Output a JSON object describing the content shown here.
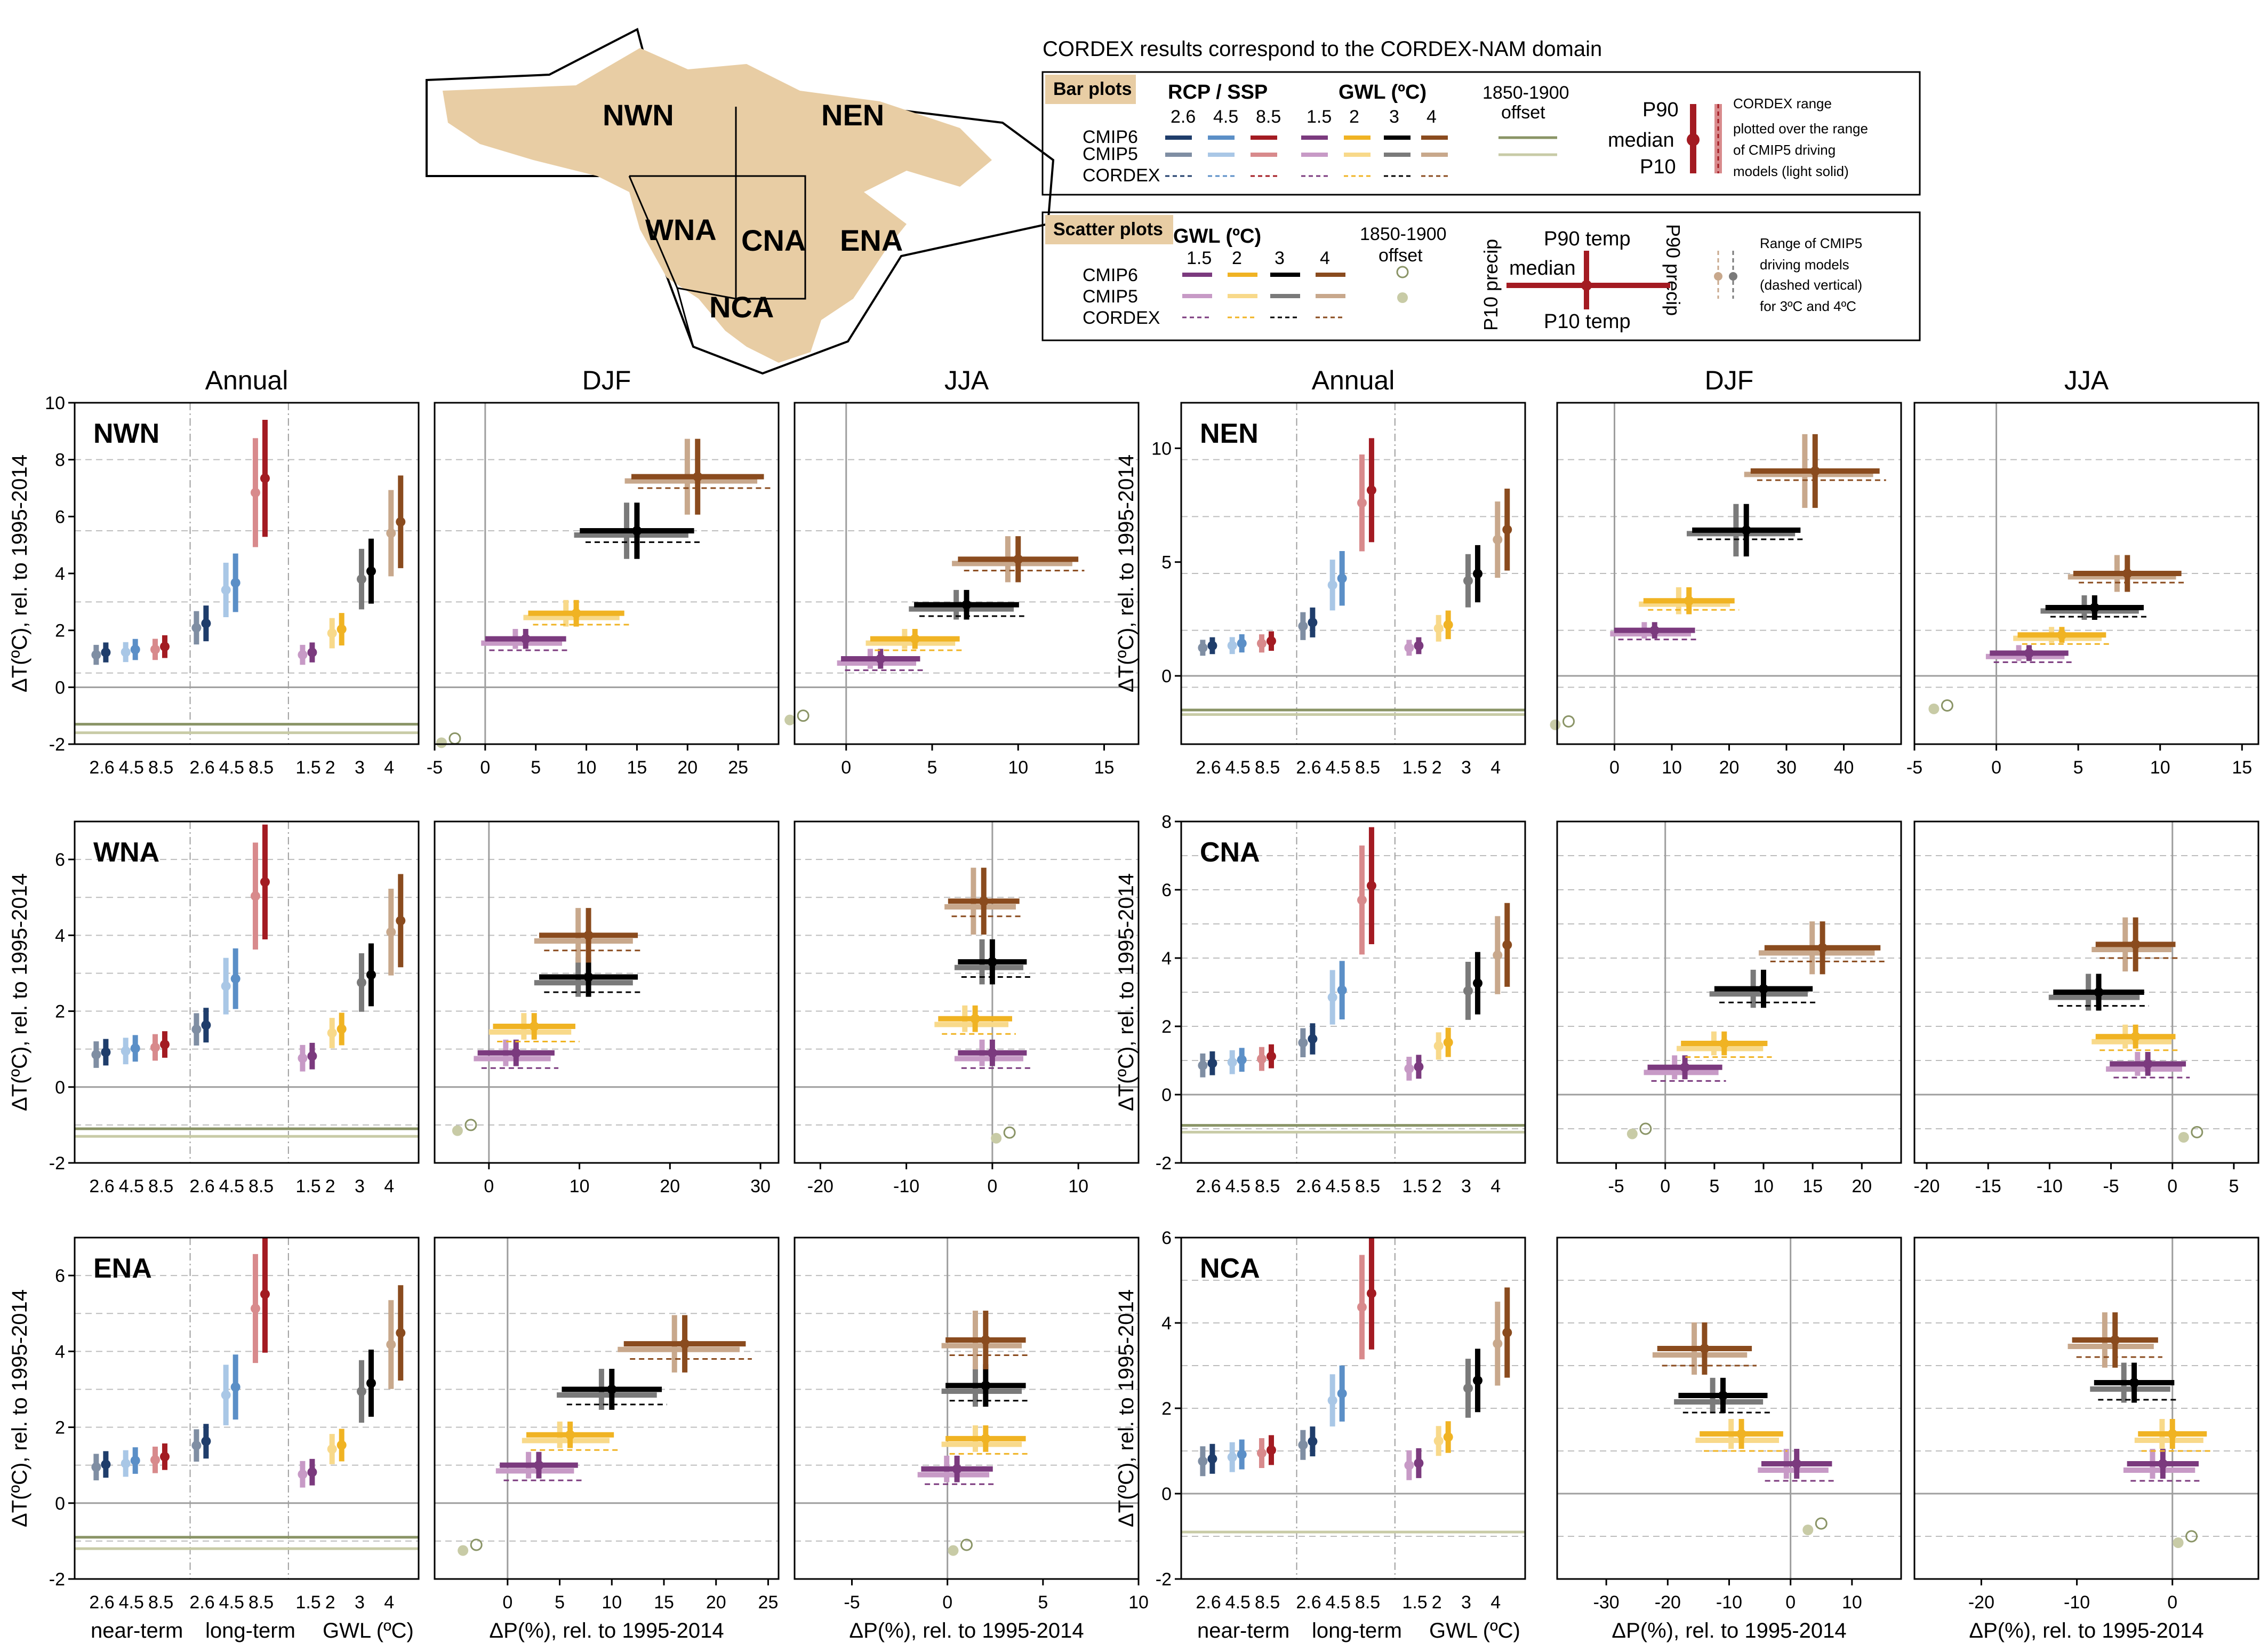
{
  "header": {
    "note": "CORDEX results correspond to the CORDEX-NAM domain",
    "map_regions": [
      "NWN",
      "NEN",
      "WNA",
      "CNA",
      "ENA",
      "NCA"
    ]
  },
  "legend_bar": {
    "title": "Bar plots",
    "rcp_title": "RCP / SSP",
    "rcp_levels": [
      "2.6",
      "4.5",
      "8.5"
    ],
    "gwl_title": "GWL (ºC)",
    "gwl_levels": [
      "1.5",
      "2",
      "3",
      "4"
    ],
    "offset_title": [
      "1850-1900",
      "offset"
    ],
    "rows": [
      "CMIP6",
      "CMIP5",
      "CORDEX"
    ],
    "stat_labels": [
      "P90",
      "median",
      "P10"
    ],
    "cordex_note": [
      "CORDEX range",
      "plotted over the range",
      "of CMIP5 driving",
      "models (light solid)"
    ]
  },
  "legend_scatter": {
    "title": "Scatter plots",
    "gwl_title": "GWL (ºC)",
    "gwl_levels": [
      "1.5",
      "2",
      "3",
      "4"
    ],
    "offset_title": [
      "1850-1900",
      "offset"
    ],
    "rows": [
      "CMIP6",
      "CMIP5",
      "CORDEX"
    ],
    "p90_temp": "P90 temp",
    "p10_temp": "P10 temp",
    "median": "median",
    "p10_precip": "P10 precip",
    "p90_precip": "P90 precip",
    "range_note": [
      "Range of CMIP5",
      "driving models",
      "(dashed vertical)",
      "for 3ºC and 4ºC"
    ]
  },
  "colors": {
    "cmip6_rcp": [
      "#1f3d6b",
      "#5b8fc7",
      "#a31b22"
    ],
    "cmip5_rcp": [
      "#7f8ea3",
      "#a9c7e6",
      "#d88a8c"
    ],
    "cmip6_gwl": [
      "#7b3a7e",
      "#f0b323",
      "#000000",
      "#8a4b1e"
    ],
    "cmip5_gwl": [
      "#c79ac6",
      "#f8d98a",
      "#7a7a7a",
      "#c8a88c"
    ],
    "offset": [
      "#8a9466",
      "#c8cba6"
    ],
    "map_land": "#e8cda4"
  },
  "common": {
    "column_titles": [
      "Annual",
      "DJF",
      "JJA"
    ],
    "bar_ticks": [
      "2.6",
      "4.5",
      "8.5",
      "2.6",
      "4.5",
      "8.5",
      "1.5",
      "2",
      "3",
      "4"
    ],
    "ylabel": "ΔT(ºC), rel. to 1995-2014",
    "bar_xlabel": [
      "near-term",
      "long-term",
      "GWL (ºC)"
    ],
    "scatter_xlabel": "ΔP(%), rel. to 1995-2014"
  },
  "chart_data": [
    {
      "type": "bar",
      "region": "NWN",
      "title": "Annual",
      "ylim": [
        -2,
        10
      ],
      "yticks": [
        -2,
        0,
        2,
        4,
        6,
        8,
        10
      ],
      "near_term": [
        1.2,
        1.3,
        1.4
      ],
      "long_term": [
        2.2,
        3.6,
        7.2
      ],
      "gwl": [
        1.2,
        2.0,
        4.0,
        5.7
      ],
      "offset": [
        -1.3,
        -1.6
      ]
    },
    {
      "type": "scatter",
      "region": "NWN",
      "title": "DJF",
      "xlim": [
        -5,
        29
      ],
      "ylim": [
        -2,
        10
      ],
      "xticks": [
        -5,
        0,
        5,
        10,
        15,
        20,
        25
      ],
      "points": [
        {
          "gwl": "1.5",
          "x": 4,
          "y": 1.7
        },
        {
          "gwl": "2",
          "x": 9,
          "y": 2.6
        },
        {
          "gwl": "3",
          "x": 15,
          "y": 5.5
        },
        {
          "gwl": "4",
          "x": 21,
          "y": 7.4
        }
      ],
      "offset": [
        -3,
        -1.8
      ]
    },
    {
      "type": "scatter",
      "region": "NWN",
      "title": "JJA",
      "xlim": [
        -3,
        17
      ],
      "ylim": [
        -2,
        10
      ],
      "xticks": [
        0,
        5,
        10,
        15
      ],
      "points": [
        {
          "gwl": "1.5",
          "x": 2,
          "y": 1.0
        },
        {
          "gwl": "2",
          "x": 4,
          "y": 1.7
        },
        {
          "gwl": "3",
          "x": 7,
          "y": 2.9
        },
        {
          "gwl": "4",
          "x": 10,
          "y": 4.5
        }
      ],
      "offset": [
        -2.5,
        -1
      ]
    },
    {
      "type": "bar",
      "region": "NEN",
      "title": "Annual",
      "ylim": [
        -3,
        12
      ],
      "yticks": [
        0,
        5,
        10
      ],
      "near_term": [
        1.3,
        1.4,
        1.5
      ],
      "long_term": [
        2.3,
        4.2,
        8.0
      ],
      "gwl": [
        1.3,
        2.2,
        4.4,
        6.3
      ],
      "offset": [
        -1.5,
        -1.7
      ]
    },
    {
      "type": "scatter",
      "region": "NEN",
      "title": "DJF",
      "xlim": [
        -10,
        50
      ],
      "ylim": [
        -3,
        12
      ],
      "xticks": [
        0,
        10,
        20,
        30,
        40
      ],
      "points": [
        {
          "gwl": "1.5",
          "x": 7,
          "y": 2.0
        },
        {
          "gwl": "2",
          "x": 13,
          "y": 3.3
        },
        {
          "gwl": "3",
          "x": 23,
          "y": 6.4
        },
        {
          "gwl": "4",
          "x": 35,
          "y": 9.0
        }
      ],
      "offset": [
        -8,
        -2
      ]
    },
    {
      "type": "scatter",
      "region": "NEN",
      "title": "JJA",
      "xlim": [
        -5,
        16
      ],
      "ylim": [
        -3,
        12
      ],
      "xticks": [
        -5,
        0,
        5,
        10,
        15
      ],
      "points": [
        {
          "gwl": "1.5",
          "x": 2,
          "y": 1.0
        },
        {
          "gwl": "2",
          "x": 4,
          "y": 1.8
        },
        {
          "gwl": "3",
          "x": 6,
          "y": 3.0
        },
        {
          "gwl": "4",
          "x": 8,
          "y": 4.5
        }
      ],
      "offset": [
        -3,
        -1.3
      ]
    },
    {
      "type": "bar",
      "region": "WNA",
      "title": "Annual",
      "ylim": [
        -2,
        7
      ],
      "yticks": [
        -2,
        0,
        2,
        4,
        6
      ],
      "near_term": [
        0.9,
        1.0,
        1.1
      ],
      "long_term": [
        1.6,
        2.8,
        5.3
      ],
      "gwl": [
        0.8,
        1.5,
        2.9,
        4.3
      ],
      "offset": [
        -1.1,
        -1.3
      ]
    },
    {
      "type": "scatter",
      "region": "WNA",
      "title": "DJF",
      "xlim": [
        -6,
        32
      ],
      "ylim": [
        -2,
        7
      ],
      "xticks": [
        0,
        10,
        20,
        30
      ],
      "points": [
        {
          "gwl": "1.5",
          "x": 3,
          "y": 0.9
        },
        {
          "gwl": "2",
          "x": 5,
          "y": 1.6
        },
        {
          "gwl": "3",
          "x": 11,
          "y": 2.9
        },
        {
          "gwl": "4",
          "x": 11,
          "y": 4.0
        }
      ],
      "offset": [
        -2,
        -1
      ]
    },
    {
      "type": "scatter",
      "region": "WNA",
      "title": "JJA",
      "xlim": [
        -23,
        17
      ],
      "ylim": [
        -2,
        7
      ],
      "xticks": [
        -20,
        -10,
        0,
        10
      ],
      "points": [
        {
          "gwl": "1.5",
          "x": 0,
          "y": 0.9
        },
        {
          "gwl": "2",
          "x": -2,
          "y": 1.8
        },
        {
          "gwl": "3",
          "x": 0,
          "y": 3.3
        },
        {
          "gwl": "4",
          "x": -1,
          "y": 4.9
        }
      ],
      "offset": [
        2,
        -1.2
      ]
    },
    {
      "type": "bar",
      "region": "CNA",
      "title": "Annual",
      "ylim": [
        -2,
        8
      ],
      "yticks": [
        -2,
        0,
        2,
        4,
        6,
        8
      ],
      "near_term": [
        0.9,
        1.0,
        1.1
      ],
      "long_term": [
        1.6,
        3.0,
        6.0
      ],
      "gwl": [
        0.8,
        1.5,
        3.2,
        4.3
      ],
      "offset": [
        -0.9,
        -1.1
      ]
    },
    {
      "type": "scatter",
      "region": "CNA",
      "title": "DJF",
      "xlim": [
        -11,
        24
      ],
      "ylim": [
        -2,
        8
      ],
      "xticks": [
        -5,
        0,
        5,
        10,
        15,
        20
      ],
      "points": [
        {
          "gwl": "1.5",
          "x": 2,
          "y": 0.8
        },
        {
          "gwl": "2",
          "x": 6,
          "y": 1.5
        },
        {
          "gwl": "3",
          "x": 10,
          "y": 3.1
        },
        {
          "gwl": "4",
          "x": 16,
          "y": 4.3
        }
      ],
      "offset": [
        -2,
        -1
      ]
    },
    {
      "type": "scatter",
      "region": "CNA",
      "title": "JJA",
      "xlim": [
        -21,
        7
      ],
      "ylim": [
        -2,
        8
      ],
      "xticks": [
        -20,
        -15,
        -10,
        -5,
        0,
        5
      ],
      "points": [
        {
          "gwl": "1.5",
          "x": -2,
          "y": 0.9
        },
        {
          "gwl": "2",
          "x": -3,
          "y": 1.7
        },
        {
          "gwl": "3",
          "x": -6,
          "y": 3.0
        },
        {
          "gwl": "4",
          "x": -3,
          "y": 4.4
        }
      ],
      "offset": [
        2,
        -1.1
      ]
    },
    {
      "type": "bar",
      "region": "ENA",
      "title": "Annual",
      "ylim": [
        -2,
        7
      ],
      "yticks": [
        -2,
        0,
        2,
        4,
        6
      ],
      "near_term": [
        1.0,
        1.1,
        1.2
      ],
      "long_term": [
        1.6,
        3.0,
        5.4
      ],
      "gwl": [
        0.8,
        1.5,
        3.1,
        4.4
      ],
      "offset": [
        -0.9,
        -1.2
      ]
    },
    {
      "type": "scatter",
      "region": "ENA",
      "title": "DJF",
      "xlim": [
        -7,
        26
      ],
      "ylim": [
        -2,
        7
      ],
      "xticks": [
        0,
        5,
        10,
        15,
        20,
        25
      ],
      "points": [
        {
          "gwl": "1.5",
          "x": 3,
          "y": 1.0
        },
        {
          "gwl": "2",
          "x": 6,
          "y": 1.8
        },
        {
          "gwl": "3",
          "x": 10,
          "y": 3.0
        },
        {
          "gwl": "4",
          "x": 17,
          "y": 4.2
        }
      ],
      "offset": [
        -3,
        -1.1
      ]
    },
    {
      "type": "scatter",
      "region": "ENA",
      "title": "JJA",
      "xlim": [
        -8,
        10
      ],
      "ylim": [
        -2,
        7
      ],
      "xticks": [
        -5,
        0,
        5,
        10
      ],
      "points": [
        {
          "gwl": "1.5",
          "x": 0.5,
          "y": 0.9
        },
        {
          "gwl": "2",
          "x": 2,
          "y": 1.7
        },
        {
          "gwl": "3",
          "x": 2,
          "y": 3.1
        },
        {
          "gwl": "4",
          "x": 2,
          "y": 4.3
        }
      ],
      "offset": [
        1,
        -1.1
      ]
    },
    {
      "type": "bar",
      "region": "NCA",
      "title": "Annual",
      "ylim": [
        -2,
        6
      ],
      "yticks": [
        -2,
        0,
        2,
        4,
        6
      ],
      "near_term": [
        0.8,
        0.9,
        1.0
      ],
      "long_term": [
        1.2,
        2.3,
        4.6
      ],
      "gwl": [
        0.7,
        1.3,
        2.6,
        3.7
      ],
      "offset": [
        -0.9,
        -0.9
      ]
    },
    {
      "type": "scatter",
      "region": "NCA",
      "title": "DJF",
      "xlim": [
        -38,
        18
      ],
      "ylim": [
        -2,
        6
      ],
      "xticks": [
        -30,
        -20,
        -10,
        0,
        10
      ],
      "points": [
        {
          "gwl": "1.5",
          "x": 1,
          "y": 0.7
        },
        {
          "gwl": "2",
          "x": -8,
          "y": 1.4
        },
        {
          "gwl": "3",
          "x": -11,
          "y": 2.3
        },
        {
          "gwl": "4",
          "x": -14,
          "y": 3.4
        }
      ],
      "offset": [
        5,
        -0.7
      ]
    },
    {
      "type": "scatter",
      "region": "NCA",
      "title": "JJA",
      "xlim": [
        -27,
        9
      ],
      "ylim": [
        -2,
        6
      ],
      "xticks": [
        -20,
        -10,
        0
      ],
      "points": [
        {
          "gwl": "1.5",
          "x": -1,
          "y": 0.7
        },
        {
          "gwl": "2",
          "x": 0,
          "y": 1.4
        },
        {
          "gwl": "3",
          "x": -4,
          "y": 2.6
        },
        {
          "gwl": "4",
          "x": -6,
          "y": 3.6
        }
      ],
      "offset": [
        2,
        -1
      ]
    }
  ]
}
